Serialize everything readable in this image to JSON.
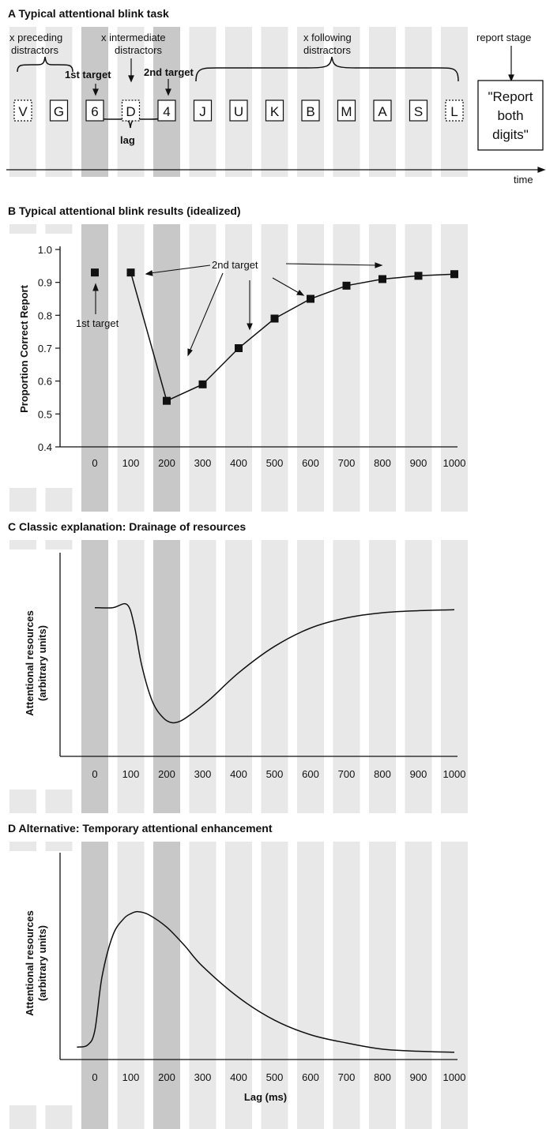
{
  "panel_a": {
    "heading": "A  Typical attentional blink task",
    "labels": {
      "preceding_1": "x  preceding",
      "preceding_2": "distractors",
      "intermediate_1": "x intermediate",
      "intermediate_2": "distractors",
      "following_1": "x following",
      "following_2": "distractors",
      "report_stage": "report stage",
      "first_target": "1st target",
      "second_target": "2nd target",
      "lag": "lag",
      "time": "time"
    },
    "stimuli": [
      {
        "letter": "V",
        "style": "dashed",
        "stripe": "light"
      },
      {
        "letter": "G",
        "style": "solid",
        "stripe": "light"
      },
      {
        "letter": "6",
        "style": "solid",
        "stripe": "dark"
      },
      {
        "letter": "D",
        "style": "dashed",
        "stripe": "light"
      },
      {
        "letter": "4",
        "style": "solid",
        "stripe": "dark"
      },
      {
        "letter": "J",
        "style": "solid",
        "stripe": "light"
      },
      {
        "letter": "U",
        "style": "solid",
        "stripe": "light"
      },
      {
        "letter": "K",
        "style": "solid",
        "stripe": "light"
      },
      {
        "letter": "B",
        "style": "solid",
        "stripe": "light"
      },
      {
        "letter": "M",
        "style": "solid",
        "stripe": "light"
      },
      {
        "letter": "A",
        "style": "solid",
        "stripe": "light"
      },
      {
        "letter": "S",
        "style": "solid",
        "stripe": "light"
      },
      {
        "letter": "L",
        "style": "dashed",
        "stripe": "light"
      }
    ],
    "report_box": [
      "\"Report",
      "both",
      "digits\""
    ]
  },
  "panel_b": {
    "heading": "B  Typical attentional blink results (idealized)",
    "ylabel": "Proportion Correct Report",
    "annotation_first": "1st target",
    "annotation_second": "2nd target"
  },
  "panel_c": {
    "heading": "C  Classic explanation: Drainage of resources",
    "ylabel_1": "Attentional resources",
    "ylabel_2": "(arbitrary units)"
  },
  "panel_d": {
    "heading": "D  Alternative: Temporary attentional enhancement",
    "ylabel_1": "Attentional resources",
    "ylabel_2": "(arbitrary units)",
    "xlabel": "Lag (ms)"
  },
  "chart_data": [
    {
      "type": "scatter",
      "panel": "B",
      "ylabel": "Proportion Correct Report",
      "xlabel": "",
      "ylim": [
        0.4,
        1.0
      ],
      "yticks": [
        "0.4",
        "0.5",
        "0.6",
        "0.7",
        "0.8",
        "0.9",
        "1.0"
      ],
      "xticks": [
        "0",
        "100",
        "200",
        "300",
        "400",
        "500",
        "600",
        "700",
        "800",
        "900",
        "1000"
      ],
      "first_target": {
        "x": 0,
        "y": 0.93
      },
      "series": [
        {
          "x": [
            100,
            200,
            300,
            400,
            500,
            600,
            700,
            800,
            900,
            1000
          ],
          "y": [
            0.93,
            0.54,
            0.59,
            0.7,
            0.79,
            0.85,
            0.89,
            0.91,
            0.92,
            0.925
          ]
        }
      ]
    },
    {
      "type": "line",
      "panel": "C",
      "ylabel": "Attentional resources (arbitrary units)",
      "xticks": [
        "0",
        "100",
        "200",
        "300",
        "400",
        "500",
        "600",
        "700",
        "800",
        "900",
        "1000"
      ],
      "ylim": [
        0,
        1
      ],
      "series": [
        {
          "x": [
            0,
            50,
            90,
            110,
            130,
            160,
            190,
            215,
            240,
            270,
            320,
            400,
            500,
            600,
            700,
            800,
            900,
            1000
          ],
          "y": [
            0.73,
            0.73,
            0.745,
            0.64,
            0.45,
            0.27,
            0.19,
            0.165,
            0.175,
            0.21,
            0.28,
            0.41,
            0.54,
            0.63,
            0.68,
            0.705,
            0.715,
            0.72
          ]
        }
      ]
    },
    {
      "type": "line",
      "panel": "D",
      "ylabel": "Attentional resources (arbitrary units)",
      "xlabel": "Lag (ms)",
      "xticks": [
        "0",
        "100",
        "200",
        "300",
        "400",
        "500",
        "600",
        "700",
        "800",
        "900",
        "1000"
      ],
      "ylim": [
        0,
        1
      ],
      "series": [
        {
          "x": [
            -50,
            -20,
            0,
            20,
            50,
            80,
            100,
            120,
            150,
            200,
            250,
            300,
            400,
            500,
            600,
            700,
            800,
            900,
            1000
          ],
          "y": [
            0.06,
            0.07,
            0.14,
            0.4,
            0.6,
            0.68,
            0.705,
            0.715,
            0.7,
            0.64,
            0.55,
            0.45,
            0.3,
            0.19,
            0.12,
            0.08,
            0.05,
            0.04,
            0.035
          ]
        }
      ]
    }
  ]
}
